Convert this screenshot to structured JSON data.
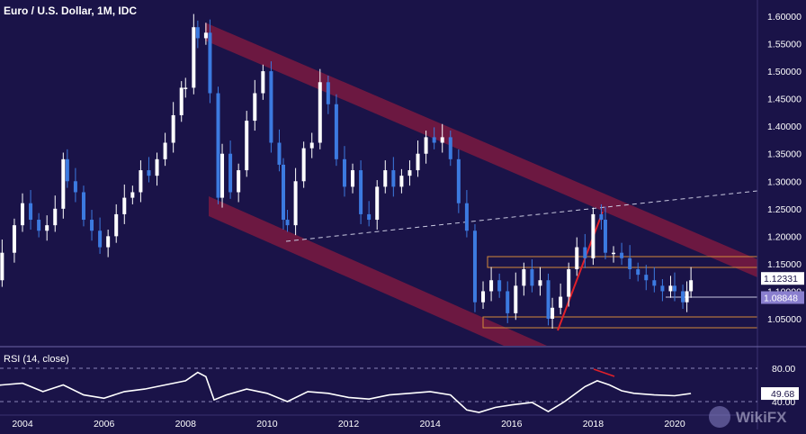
{
  "chart_title": "Euro / U.S. Dollar, 1M, IDC",
  "watermark": "WikiFX",
  "price_axis_labels": [
    "1.60000",
    "1.55000",
    "1.50000",
    "1.45000",
    "1.40000",
    "1.35000",
    "1.30000",
    "1.25000",
    "1.20000",
    "1.15000",
    "1.10000",
    "1.05000"
  ],
  "rsi_axis_labels": [
    "80.00",
    "40.00"
  ],
  "time_axis_labels": [
    "2004",
    "2006",
    "2008",
    "2010",
    "2012",
    "2014",
    "2016",
    "2018",
    "2020"
  ],
  "price_badges": [
    {
      "label": "1.12331",
      "role": "last-price",
      "value": 1.12331,
      "bg": "#ffffff",
      "fg": "#1a1348"
    },
    {
      "label": "1.08848",
      "role": "support-level",
      "value": 1.08848,
      "bg": "#8a7fcf",
      "fg": "#ffffff"
    }
  ],
  "rsi_badge": {
    "label": "49.68",
    "value": 49.68
  },
  "colors": {
    "background": "#1a1348",
    "bull_candle": "#ffffff",
    "bear_candle": "#3c7ae0",
    "channel": "#b01e3c",
    "range_box": "#d48a3a",
    "trendline": "#e0202a",
    "dashed_line": "#c9c9e0",
    "rsi_line": "#ffffff"
  },
  "chart_data": [
    {
      "type": "line",
      "title": "Euro / U.S. Dollar, 1M, IDC",
      "x_label": "",
      "y_label": "",
      "x_range": [
        2003.0,
        2021.8
      ],
      "y_range": [
        1.005,
        1.615
      ],
      "x_ticks": [
        2004,
        2006,
        2008,
        2010,
        2012,
        2014,
        2016,
        2018,
        2020
      ],
      "y_ticks": [
        1.6,
        1.55,
        1.5,
        1.45,
        1.4,
        1.35,
        1.3,
        1.25,
        1.2,
        1.15,
        1.1,
        1.05
      ],
      "grid": false,
      "legend": "none",
      "series": [
        {
          "type": "candlestick-approx-close",
          "points": [
            [
              2003.0,
              1.09
            ],
            [
              2003.3,
              1.12
            ],
            [
              2003.5,
              1.17
            ],
            [
              2003.8,
              1.22
            ],
            [
              2004.0,
              1.26
            ],
            [
              2004.2,
              1.23
            ],
            [
              2004.4,
              1.21
            ],
            [
              2004.6,
              1.22
            ],
            [
              2004.8,
              1.25
            ],
            [
              2005.0,
              1.34
            ],
            [
              2005.1,
              1.3
            ],
            [
              2005.3,
              1.28
            ],
            [
              2005.5,
              1.23
            ],
            [
              2005.7,
              1.21
            ],
            [
              2005.9,
              1.18
            ],
            [
              2006.1,
              1.2
            ],
            [
              2006.3,
              1.24
            ],
            [
              2006.5,
              1.27
            ],
            [
              2006.7,
              1.28
            ],
            [
              2006.9,
              1.32
            ],
            [
              2007.1,
              1.31
            ],
            [
              2007.3,
              1.34
            ],
            [
              2007.5,
              1.37
            ],
            [
              2007.7,
              1.42
            ],
            [
              2007.9,
              1.47
            ],
            [
              2008.0,
              1.47
            ],
            [
              2008.2,
              1.58
            ],
            [
              2008.3,
              1.56
            ],
            [
              2008.5,
              1.57
            ],
            [
              2008.6,
              1.46
            ],
            [
              2008.8,
              1.27
            ],
            [
              2008.9,
              1.35
            ],
            [
              2009.1,
              1.28
            ],
            [
              2009.3,
              1.32
            ],
            [
              2009.5,
              1.41
            ],
            [
              2009.7,
              1.46
            ],
            [
              2009.9,
              1.5
            ],
            [
              2010.1,
              1.37
            ],
            [
              2010.3,
              1.33
            ],
            [
              2010.4,
              1.23
            ],
            [
              2010.5,
              1.22
            ],
            [
              2010.7,
              1.3
            ],
            [
              2010.9,
              1.36
            ],
            [
              2011.1,
              1.37
            ],
            [
              2011.3,
              1.48
            ],
            [
              2011.5,
              1.44
            ],
            [
              2011.7,
              1.34
            ],
            [
              2011.9,
              1.29
            ],
            [
              2012.1,
              1.32
            ],
            [
              2012.3,
              1.24
            ],
            [
              2012.5,
              1.23
            ],
            [
              2012.7,
              1.29
            ],
            [
              2012.9,
              1.32
            ],
            [
              2013.1,
              1.29
            ],
            [
              2013.3,
              1.31
            ],
            [
              2013.5,
              1.32
            ],
            [
              2013.7,
              1.35
            ],
            [
              2013.9,
              1.38
            ],
            [
              2014.1,
              1.37
            ],
            [
              2014.3,
              1.38
            ],
            [
              2014.5,
              1.34
            ],
            [
              2014.7,
              1.26
            ],
            [
              2014.9,
              1.21
            ],
            [
              2015.1,
              1.08
            ],
            [
              2015.3,
              1.1
            ],
            [
              2015.5,
              1.12
            ],
            [
              2015.7,
              1.1
            ],
            [
              2015.9,
              1.06
            ],
            [
              2016.1,
              1.11
            ],
            [
              2016.3,
              1.14
            ],
            [
              2016.5,
              1.11
            ],
            [
              2016.7,
              1.12
            ],
            [
              2016.9,
              1.05
            ],
            [
              2017.0,
              1.07
            ],
            [
              2017.2,
              1.09
            ],
            [
              2017.4,
              1.14
            ],
            [
              2017.6,
              1.18
            ],
            [
              2017.8,
              1.16
            ],
            [
              2018.0,
              1.24
            ],
            [
              2018.2,
              1.23
            ],
            [
              2018.3,
              1.17
            ],
            [
              2018.5,
              1.17
            ],
            [
              2018.7,
              1.16
            ],
            [
              2018.9,
              1.14
            ],
            [
              2019.1,
              1.13
            ],
            [
              2019.3,
              1.12
            ],
            [
              2019.5,
              1.11
            ],
            [
              2019.7,
              1.1
            ],
            [
              2019.9,
              1.11
            ],
            [
              2020.0,
              1.1
            ],
            [
              2020.2,
              1.08
            ],
            [
              2020.3,
              1.1
            ],
            [
              2020.4,
              1.12
            ]
          ]
        },
        {
          "name": "RSI (14, close)",
          "type": "line",
          "y_range": [
            25,
            90
          ],
          "points": [
            [
              2003.0,
              58
            ],
            [
              2003.5,
              60
            ],
            [
              2004.0,
              62
            ],
            [
              2004.5,
              52
            ],
            [
              2005.0,
              60
            ],
            [
              2005.5,
              48
            ],
            [
              2006.0,
              44
            ],
            [
              2006.5,
              52
            ],
            [
              2007.0,
              55
            ],
            [
              2007.5,
              60
            ],
            [
              2008.0,
              65
            ],
            [
              2008.3,
              75
            ],
            [
              2008.5,
              70
            ],
            [
              2008.7,
              42
            ],
            [
              2009.0,
              48
            ],
            [
              2009.5,
              55
            ],
            [
              2010.0,
              50
            ],
            [
              2010.5,
              40
            ],
            [
              2011.0,
              52
            ],
            [
              2011.5,
              50
            ],
            [
              2012.0,
              45
            ],
            [
              2012.5,
              43
            ],
            [
              2013.0,
              48
            ],
            [
              2013.5,
              50
            ],
            [
              2014.0,
              52
            ],
            [
              2014.5,
              48
            ],
            [
              2014.9,
              30
            ],
            [
              2015.2,
              27
            ],
            [
              2015.6,
              33
            ],
            [
              2016.0,
              36
            ],
            [
              2016.5,
              39
            ],
            [
              2016.9,
              28
            ],
            [
              2017.3,
              40
            ],
            [
              2017.8,
              58
            ],
            [
              2018.1,
              65
            ],
            [
              2018.4,
              60
            ],
            [
              2018.7,
              53
            ],
            [
              2019.0,
              50
            ],
            [
              2019.5,
              48
            ],
            [
              2020.0,
              47
            ],
            [
              2020.4,
              49.68
            ]
          ]
        }
      ],
      "annotations": {
        "price_badges": [
          "1.12331",
          "1.08848"
        ],
        "rsi_badge": "49.68",
        "rsi_label": "RSI (14, close)",
        "rsi_levels": [
          80.0,
          40.0
        ]
      }
    }
  ]
}
